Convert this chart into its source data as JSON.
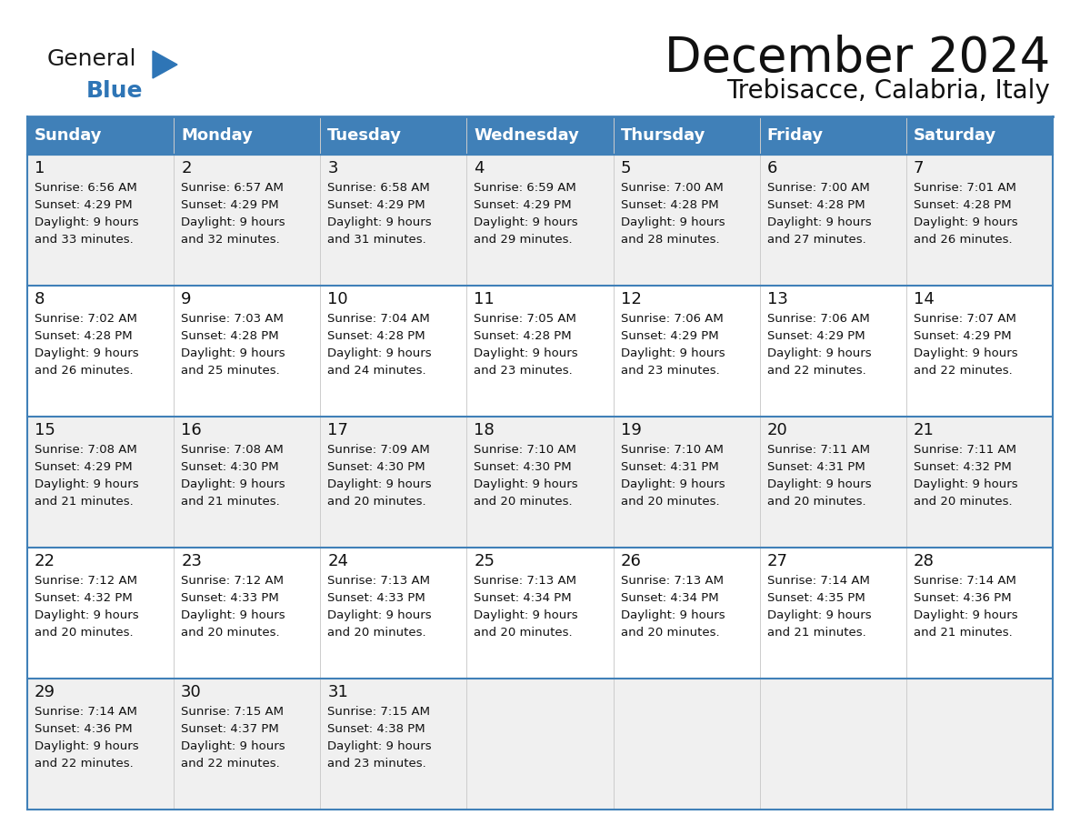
{
  "title": "December 2024",
  "subtitle": "Trebisacce, Calabria, Italy",
  "header_bg": "#4080B8",
  "header_text_color": "#FFFFFF",
  "days_of_week": [
    "Sunday",
    "Monday",
    "Tuesday",
    "Wednesday",
    "Thursday",
    "Friday",
    "Saturday"
  ],
  "row_bg_odd": "#F0F0F0",
  "row_bg_even": "#FFFFFF",
  "cell_text_color": "#111111",
  "grid_line_color": "#4080B8",
  "background_color": "#FFFFFF",
  "logo_general_color": "#1A1A1A",
  "logo_blue_color": "#2E75B6",
  "weeks": [
    [
      {
        "day": 1,
        "sunrise": "6:56 AM",
        "sunset": "4:29 PM",
        "daylight": "9 hours",
        "daylight2": "and 33 minutes."
      },
      {
        "day": 2,
        "sunrise": "6:57 AM",
        "sunset": "4:29 PM",
        "daylight": "9 hours",
        "daylight2": "and 32 minutes."
      },
      {
        "day": 3,
        "sunrise": "6:58 AM",
        "sunset": "4:29 PM",
        "daylight": "9 hours",
        "daylight2": "and 31 minutes."
      },
      {
        "day": 4,
        "sunrise": "6:59 AM",
        "sunset": "4:29 PM",
        "daylight": "9 hours",
        "daylight2": "and 29 minutes."
      },
      {
        "day": 5,
        "sunrise": "7:00 AM",
        "sunset": "4:28 PM",
        "daylight": "9 hours",
        "daylight2": "and 28 minutes."
      },
      {
        "day": 6,
        "sunrise": "7:00 AM",
        "sunset": "4:28 PM",
        "daylight": "9 hours",
        "daylight2": "and 27 minutes."
      },
      {
        "day": 7,
        "sunrise": "7:01 AM",
        "sunset": "4:28 PM",
        "daylight": "9 hours",
        "daylight2": "and 26 minutes."
      }
    ],
    [
      {
        "day": 8,
        "sunrise": "7:02 AM",
        "sunset": "4:28 PM",
        "daylight": "9 hours",
        "daylight2": "and 26 minutes."
      },
      {
        "day": 9,
        "sunrise": "7:03 AM",
        "sunset": "4:28 PM",
        "daylight": "9 hours",
        "daylight2": "and 25 minutes."
      },
      {
        "day": 10,
        "sunrise": "7:04 AM",
        "sunset": "4:28 PM",
        "daylight": "9 hours",
        "daylight2": "and 24 minutes."
      },
      {
        "day": 11,
        "sunrise": "7:05 AM",
        "sunset": "4:28 PM",
        "daylight": "9 hours",
        "daylight2": "and 23 minutes."
      },
      {
        "day": 12,
        "sunrise": "7:06 AM",
        "sunset": "4:29 PM",
        "daylight": "9 hours",
        "daylight2": "and 23 minutes."
      },
      {
        "day": 13,
        "sunrise": "7:06 AM",
        "sunset": "4:29 PM",
        "daylight": "9 hours",
        "daylight2": "and 22 minutes."
      },
      {
        "day": 14,
        "sunrise": "7:07 AM",
        "sunset": "4:29 PM",
        "daylight": "9 hours",
        "daylight2": "and 22 minutes."
      }
    ],
    [
      {
        "day": 15,
        "sunrise": "7:08 AM",
        "sunset": "4:29 PM",
        "daylight": "9 hours",
        "daylight2": "and 21 minutes."
      },
      {
        "day": 16,
        "sunrise": "7:08 AM",
        "sunset": "4:30 PM",
        "daylight": "9 hours",
        "daylight2": "and 21 minutes."
      },
      {
        "day": 17,
        "sunrise": "7:09 AM",
        "sunset": "4:30 PM",
        "daylight": "9 hours",
        "daylight2": "and 20 minutes."
      },
      {
        "day": 18,
        "sunrise": "7:10 AM",
        "sunset": "4:30 PM",
        "daylight": "9 hours",
        "daylight2": "and 20 minutes."
      },
      {
        "day": 19,
        "sunrise": "7:10 AM",
        "sunset": "4:31 PM",
        "daylight": "9 hours",
        "daylight2": "and 20 minutes."
      },
      {
        "day": 20,
        "sunrise": "7:11 AM",
        "sunset": "4:31 PM",
        "daylight": "9 hours",
        "daylight2": "and 20 minutes."
      },
      {
        "day": 21,
        "sunrise": "7:11 AM",
        "sunset": "4:32 PM",
        "daylight": "9 hours",
        "daylight2": "and 20 minutes."
      }
    ],
    [
      {
        "day": 22,
        "sunrise": "7:12 AM",
        "sunset": "4:32 PM",
        "daylight": "9 hours",
        "daylight2": "and 20 minutes."
      },
      {
        "day": 23,
        "sunrise": "7:12 AM",
        "sunset": "4:33 PM",
        "daylight": "9 hours",
        "daylight2": "and 20 minutes."
      },
      {
        "day": 24,
        "sunrise": "7:13 AM",
        "sunset": "4:33 PM",
        "daylight": "9 hours",
        "daylight2": "and 20 minutes."
      },
      {
        "day": 25,
        "sunrise": "7:13 AM",
        "sunset": "4:34 PM",
        "daylight": "9 hours",
        "daylight2": "and 20 minutes."
      },
      {
        "day": 26,
        "sunrise": "7:13 AM",
        "sunset": "4:34 PM",
        "daylight": "9 hours",
        "daylight2": "and 20 minutes."
      },
      {
        "day": 27,
        "sunrise": "7:14 AM",
        "sunset": "4:35 PM",
        "daylight": "9 hours",
        "daylight2": "and 21 minutes."
      },
      {
        "day": 28,
        "sunrise": "7:14 AM",
        "sunset": "4:36 PM",
        "daylight": "9 hours",
        "daylight2": "and 21 minutes."
      }
    ],
    [
      {
        "day": 29,
        "sunrise": "7:14 AM",
        "sunset": "4:36 PM",
        "daylight": "9 hours",
        "daylight2": "and 22 minutes."
      },
      {
        "day": 30,
        "sunrise": "7:15 AM",
        "sunset": "4:37 PM",
        "daylight": "9 hours",
        "daylight2": "and 22 minutes."
      },
      {
        "day": 31,
        "sunrise": "7:15 AM",
        "sunset": "4:38 PM",
        "daylight": "9 hours",
        "daylight2": "and 23 minutes."
      },
      null,
      null,
      null,
      null
    ]
  ]
}
